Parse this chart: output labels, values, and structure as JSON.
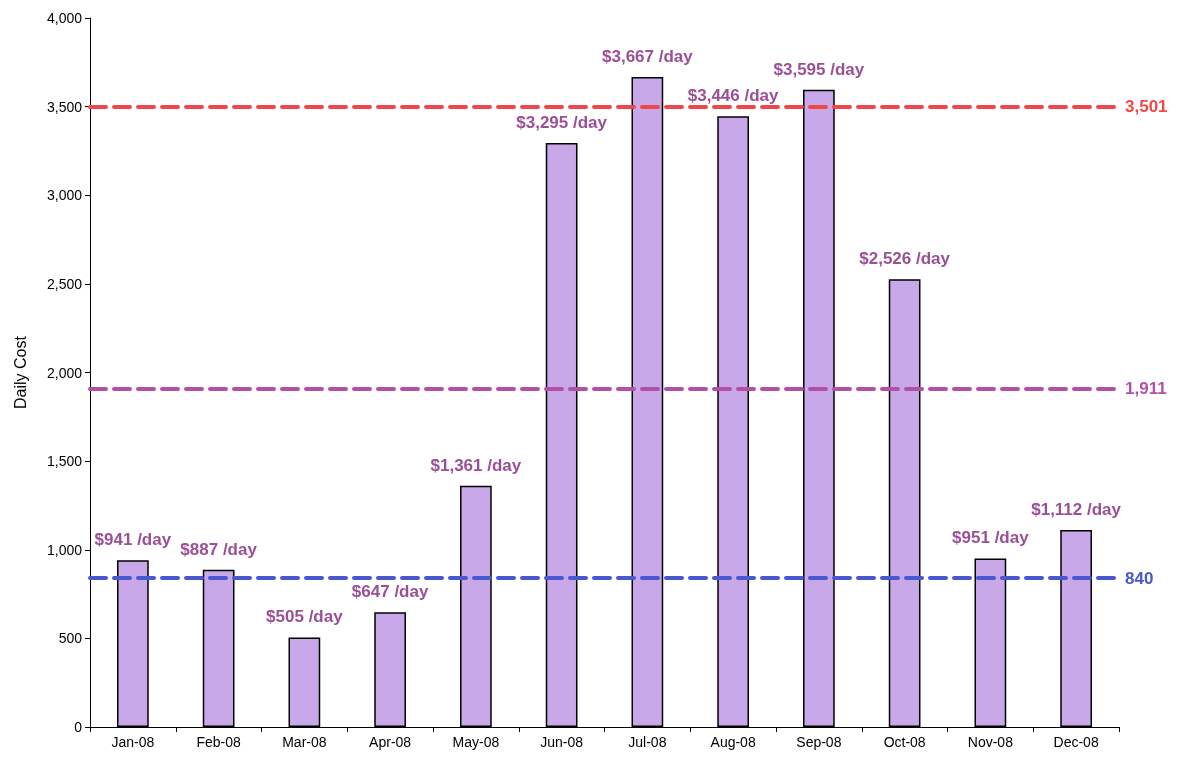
{
  "chart_data": {
    "type": "bar",
    "ylabel": "Daily Cost",
    "categories": [
      "Jan-08",
      "Feb-08",
      "Mar-08",
      "Apr-08",
      "May-08",
      "Jun-08",
      "Jul-08",
      "Aug-08",
      "Sep-08",
      "Oct-08",
      "Nov-08",
      "Dec-08"
    ],
    "values": [
      941,
      887,
      505,
      647,
      1361,
      3295,
      3667,
      3446,
      3595,
      2526,
      951,
      1112
    ],
    "value_labels": [
      "$941 /day",
      "$887 /day",
      "$505 /day",
      "$647 /day",
      "$1,361 /day",
      "$3,295 /day",
      "$3,667 /day",
      "$3,446 /day",
      "$3,595 /day",
      "$2,526 /day",
      "$951 /day",
      "$1,112 /day"
    ],
    "color": "#c8a8e8",
    "ylim": [
      0,
      4000
    ],
    "yticks": [
      0,
      {
        "value": 500,
        "label": "500"
      },
      {
        "value": 1000,
        "label": "1,000"
      },
      {
        "value": 1500,
        "label": "1,500"
      },
      {
        "value": 2000,
        "label": "2,000"
      },
      {
        "value": 2500,
        "label": "2,500"
      },
      {
        "value": 3000,
        "label": "3,000"
      },
      {
        "value": 3500,
        "label": "3,500"
      },
      {
        "value": 4000,
        "label": "4,000"
      }
    ],
    "ref_lines": [
      {
        "axis": "y",
        "value": 3501,
        "label": "3,501",
        "color": "#f04848",
        "line_style": "dashed"
      },
      {
        "axis": "y",
        "value": 1911,
        "label": "1,911",
        "color": "#b050a8",
        "line_style": "dashed"
      },
      {
        "axis": "y",
        "value": 840,
        "label": "840",
        "color": "#4a58d0",
        "line_style": "dashed"
      }
    ],
    "grid": false
  }
}
